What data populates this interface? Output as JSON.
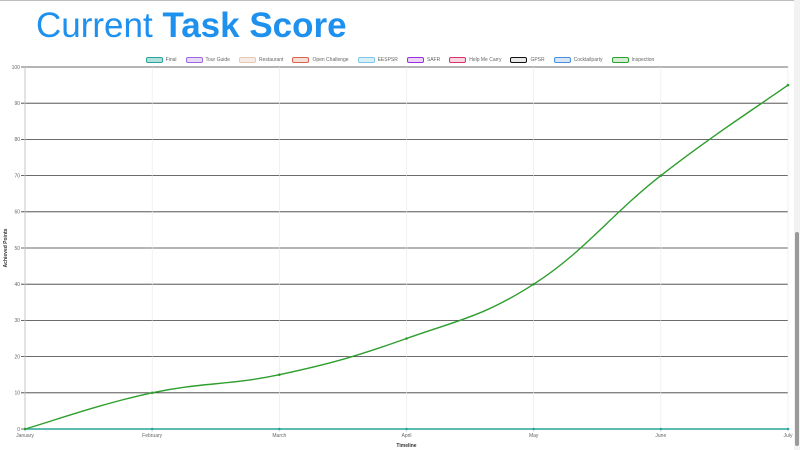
{
  "header": {
    "title_prefix": "Current ",
    "title_bold": "Task Score",
    "title_color": "#1e90ee"
  },
  "legend": [
    {
      "label": "Final",
      "border": "#26a69a",
      "fill": "#b2dfdb"
    },
    {
      "label": "Tour Guide",
      "border": "#9c6ade",
      "fill": "#e6daf7"
    },
    {
      "label": "Restaurant",
      "border": "#e6c9b5",
      "fill": "#f6ece5"
    },
    {
      "label": "Open Challenge",
      "border": "#d9644c",
      "fill": "#f7ddd7"
    },
    {
      "label": "EESPSR",
      "border": "#7ec8e3",
      "fill": "#d8eff7"
    },
    {
      "label": "SAFR",
      "border": "#9b30d9",
      "fill": "#ead3f7"
    },
    {
      "label": "Help Me Carry",
      "border": "#d6336c",
      "fill": "#f7d6e2"
    },
    {
      "label": "GPSR",
      "border": "#111111",
      "fill": "#e8e8e8"
    },
    {
      "label": "Cocktailparty",
      "border": "#4a90d9",
      "fill": "#d6e6f7"
    },
    {
      "label": "Inspection",
      "border": "#2e9e2e",
      "fill": "#d3edd3"
    }
  ],
  "chart_data": {
    "type": "line",
    "title": "",
    "xlabel": "Timeline",
    "ylabel": "Achieved Points",
    "categories": [
      "January",
      "February",
      "March",
      "April",
      "May",
      "June",
      "July"
    ],
    "ylim": [
      0,
      100
    ],
    "yticks": [
      "0",
      "10",
      "20",
      "30",
      "40",
      "50",
      "60",
      "70",
      "80",
      "90",
      "100"
    ],
    "grid": true,
    "legend_position": "top",
    "series": [
      {
        "name": "Final",
        "color": "#26a69a",
        "values": [
          0,
          0,
          0,
          0,
          0,
          0,
          0
        ]
      },
      {
        "name": "Inspection",
        "color": "#2e9e2e",
        "values": [
          0,
          10,
          15,
          25,
          40,
          70,
          95
        ]
      }
    ]
  }
}
